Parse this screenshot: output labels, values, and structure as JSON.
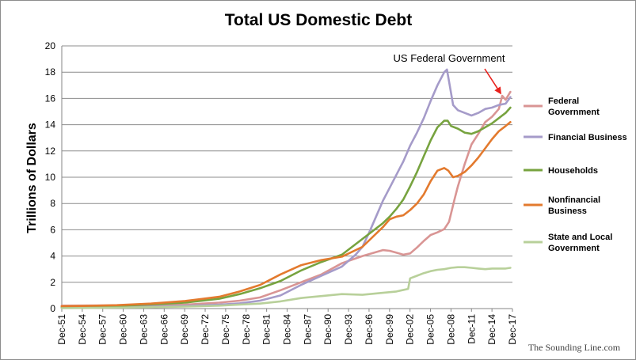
{
  "chart_data": {
    "type": "line",
    "title": "Total US Domestic Debt",
    "xlabel": "",
    "ylabel": "Trillions of Dollars",
    "ylim": [
      0,
      20
    ],
    "yticks": [
      0,
      2,
      4,
      6,
      8,
      10,
      12,
      14,
      16,
      18,
      20
    ],
    "xlim": [
      1951.917,
      2018.0
    ],
    "xtick_labels": [
      "Dec-51",
      "Dec-54",
      "Dec-57",
      "Dec-60",
      "Dec-63",
      "Dec-66",
      "Dec-69",
      "Dec-72",
      "Dec-75",
      "Dec-78",
      "Dec-81",
      "Dec-84",
      "Dec-87",
      "Dec-90",
      "Dec-93",
      "Dec-96",
      "Dec-99",
      "Dec-02",
      "Dec-05",
      "Dec-08",
      "Dec-11",
      "Dec-14",
      "Dec-17"
    ],
    "grid": "horizontal",
    "legend_position": "right",
    "annotation": {
      "text": "US Federal Government",
      "points_to": {
        "x": 2016.5,
        "y": 16.2
      },
      "arrow_color": "#e8201c"
    },
    "watermark": "The Sounding Line.com",
    "series": [
      {
        "name": "Federal Government",
        "color": "#d99594",
        "x": [
          1951.9,
          1955,
          1960,
          1965,
          1970,
          1975,
          1978,
          1981,
          1984,
          1987,
          1990,
          1993,
          1996,
          1999,
          2000,
          2001,
          2002,
          2003,
          2004,
          2005,
          2006,
          2007,
          2008,
          2008.7,
          2009.5,
          2010,
          2011,
          2012,
          2013,
          2014,
          2015,
          2016,
          2016.5,
          2017,
          2017.7
        ],
        "y": [
          0.22,
          0.23,
          0.24,
          0.26,
          0.3,
          0.45,
          0.6,
          0.85,
          1.4,
          2.0,
          2.6,
          3.45,
          4.0,
          4.45,
          4.4,
          4.25,
          4.1,
          4.2,
          4.65,
          5.15,
          5.6,
          5.8,
          6.05,
          6.6,
          8.3,
          9.3,
          11.0,
          12.5,
          13.3,
          14.2,
          14.6,
          15.2,
          16.2,
          15.9,
          16.5
        ]
      },
      {
        "name": "Financial Business",
        "color": "#a59bc9",
        "x": [
          1951.9,
          1955,
          1960,
          1965,
          1970,
          1975,
          1978,
          1981,
          1984,
          1987,
          1990,
          1993,
          1995,
          1996,
          1997,
          1998,
          1999,
          2000,
          2001,
          2002,
          2003,
          2004,
          2005,
          2006,
          2007,
          2008,
          2008.4,
          2008.8,
          2009.3,
          2010,
          2011,
          2012,
          2013,
          2014,
          2015,
          2016,
          2017,
          2017.7
        ],
        "y": [
          0.05,
          0.07,
          0.1,
          0.15,
          0.2,
          0.3,
          0.4,
          0.6,
          1.0,
          1.8,
          2.5,
          3.2,
          4.1,
          4.7,
          5.8,
          7.0,
          8.2,
          9.2,
          10.2,
          11.2,
          12.4,
          13.4,
          14.5,
          15.8,
          17.0,
          18.0,
          18.2,
          17.0,
          15.5,
          15.1,
          14.9,
          14.7,
          14.9,
          15.2,
          15.3,
          15.5,
          15.6,
          16.1
        ]
      },
      {
        "name": "Households",
        "color": "#77a33f",
        "x": [
          1951.9,
          1955,
          1960,
          1965,
          1970,
          1975,
          1978,
          1981,
          1984,
          1987,
          1990,
          1993,
          1996,
          1999,
          2000,
          2001,
          2002,
          2003,
          2004,
          2005,
          2006,
          2007,
          2008,
          2008.5,
          2009,
          2010,
          2011,
          2012,
          2013,
          2014,
          2015,
          2016,
          2017,
          2017.7
        ],
        "y": [
          0.12,
          0.14,
          0.2,
          0.32,
          0.45,
          0.75,
          1.1,
          1.55,
          2.1,
          2.9,
          3.55,
          4.1,
          5.3,
          6.5,
          7.0,
          7.6,
          8.3,
          9.3,
          10.4,
          11.6,
          12.8,
          13.8,
          14.3,
          14.3,
          13.9,
          13.7,
          13.4,
          13.3,
          13.5,
          13.8,
          14.1,
          14.5,
          14.9,
          15.3
        ]
      },
      {
        "name": "Nonfinancial Business",
        "color": "#e37a2e",
        "x": [
          1951.9,
          1955,
          1960,
          1965,
          1970,
          1975,
          1978,
          1981,
          1984,
          1987,
          1990,
          1993,
          1996,
          1999,
          2000,
          2001,
          2002,
          2003,
          2004,
          2005,
          2006,
          2007,
          2008,
          2008.6,
          2009.3,
          2010,
          2011,
          2012,
          2013,
          2014,
          2015,
          2016,
          2017,
          2017.7
        ],
        "y": [
          0.18,
          0.2,
          0.26,
          0.38,
          0.58,
          0.9,
          1.3,
          1.8,
          2.6,
          3.3,
          3.7,
          3.95,
          4.7,
          6.2,
          6.8,
          7.0,
          7.1,
          7.5,
          8.0,
          8.7,
          9.7,
          10.5,
          10.7,
          10.5,
          10.0,
          10.1,
          10.4,
          10.9,
          11.5,
          12.2,
          12.9,
          13.5,
          13.9,
          14.2
        ]
      },
      {
        "name": "State and Local Government",
        "color": "#b8d09a",
        "x": [
          1951.9,
          1955,
          1960,
          1965,
          1970,
          1975,
          1978,
          1981,
          1984,
          1987,
          1990,
          1993,
          1996,
          1999,
          2001,
          2002.7,
          2003,
          2004,
          2005,
          2006,
          2007,
          2008,
          2009,
          2010,
          2011,
          2012,
          2013,
          2014,
          2015,
          2016,
          2017,
          2017.7
        ],
        "y": [
          0.03,
          0.04,
          0.07,
          0.1,
          0.15,
          0.22,
          0.3,
          0.38,
          0.55,
          0.8,
          0.95,
          1.1,
          1.05,
          1.2,
          1.3,
          1.5,
          2.3,
          2.5,
          2.7,
          2.85,
          2.95,
          3.0,
          3.1,
          3.15,
          3.15,
          3.1,
          3.05,
          3.0,
          3.05,
          3.05,
          3.05,
          3.1
        ]
      }
    ]
  }
}
